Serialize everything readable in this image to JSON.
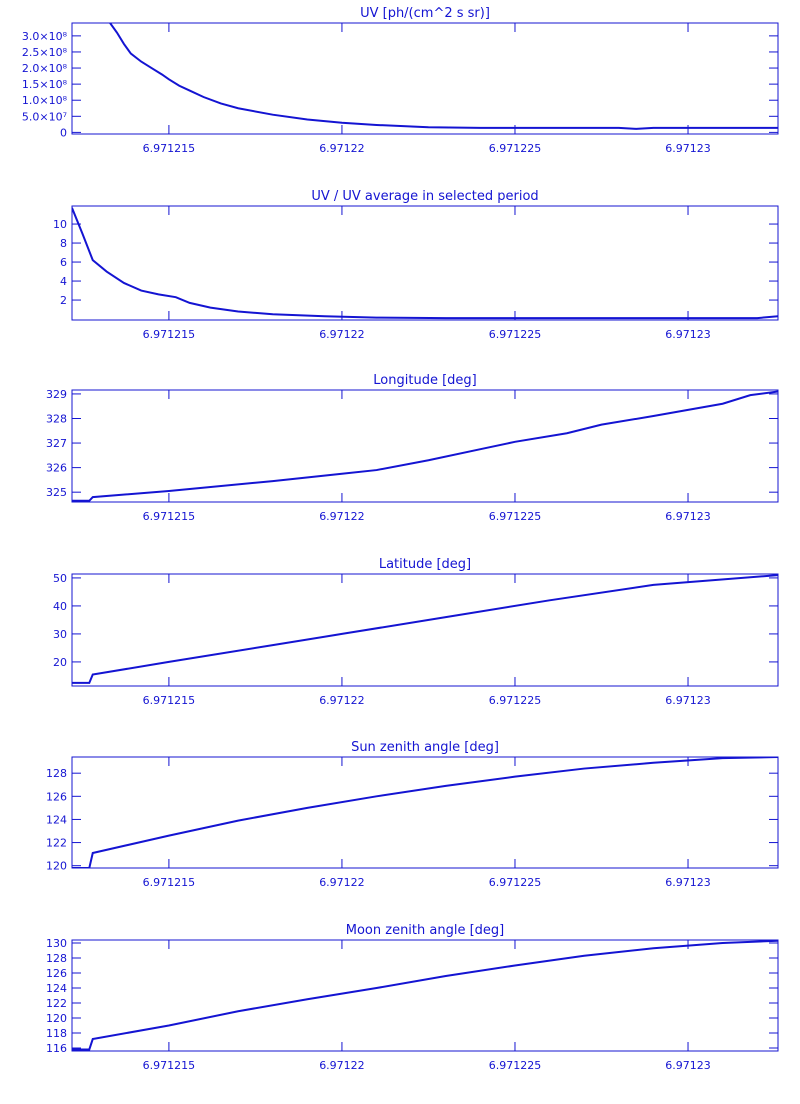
{
  "chart_data": [
    {
      "type": "line",
      "title": "UV [ph/(cm^2 s sr)]",
      "color": "#1414d2",
      "x": [
        6.9712133,
        6.9712135,
        6.9712137,
        6.9712139,
        6.9712142,
        6.9712145,
        6.9712148,
        6.971215,
        6.9712153,
        6.9712156,
        6.971216,
        6.9712165,
        6.971217,
        6.971218,
        6.971219,
        6.97122,
        6.971221,
        6.9712225,
        6.971224,
        6.971228,
        6.9712285,
        6.971229,
        6.9712326
      ],
      "values": [
        340000000,
        310000000,
        275000000,
        245000000,
        220000000,
        200000000,
        180000000,
        165000000,
        145000000,
        130000000,
        110000000,
        90000000,
        75000000,
        55000000,
        40000000,
        30000000,
        23000000,
        16000000,
        14000000,
        14000000,
        11000000,
        14000000,
        14000000
      ],
      "xlim": [
        6.9712122,
        6.9712326
      ],
      "xticks": [
        6.971215,
        6.97122,
        6.971225,
        6.97123
      ],
      "ylim": [
        -5000000,
        340000000
      ],
      "yticks": [
        0,
        {
          "value": 50000000,
          "label": "5.0×10⁷"
        },
        {
          "value": 100000000,
          "label": "1.0×10⁸"
        },
        {
          "value": 150000000,
          "label": "1.5×10⁸"
        },
        {
          "value": 200000000,
          "label": "2.0×10⁸"
        },
        {
          "value": 250000000,
          "label": "2.5×10⁸"
        },
        {
          "value": 300000000,
          "label": "3.0×10⁸"
        }
      ]
    },
    {
      "type": "line",
      "title": "UV / UV average in selected period",
      "color": "#1414d2",
      "x": [
        6.9712122,
        6.9712125,
        6.9712128,
        6.9712132,
        6.9712137,
        6.9712142,
        6.9712147,
        6.9712152,
        6.9712156,
        6.9712162,
        6.971217,
        6.971218,
        6.9712195,
        6.971221,
        6.971223,
        6.971232,
        6.9712326
      ],
      "values": [
        11.7,
        9,
        6.2,
        5,
        3.8,
        3,
        2.6,
        2.3,
        1.7,
        1.2,
        0.8,
        0.5,
        0.3,
        0.15,
        0.1,
        0.1,
        0.3
      ],
      "xlim": [
        6.9712122,
        6.9712326
      ],
      "xticks": [
        6.971215,
        6.97122,
        6.971225,
        6.97123
      ],
      "ylim": [
        -0.1,
        11.9
      ],
      "yticks": [
        2,
        4,
        6,
        8,
        10
      ]
    },
    {
      "type": "line",
      "title": "Longitude [deg]",
      "color": "#1414d2",
      "x": [
        6.9712122,
        6.9712127,
        6.9712128,
        6.971215,
        6.971218,
        6.97122,
        6.971221,
        6.9712225,
        6.971224,
        6.971225,
        6.9712265,
        6.9712275,
        6.971229,
        6.971231,
        6.9712318,
        6.9712326
      ],
      "values": [
        324.65,
        324.65,
        324.8,
        325.05,
        325.45,
        325.75,
        325.9,
        326.3,
        326.75,
        327.05,
        327.4,
        327.75,
        328.1,
        328.6,
        328.95,
        329.1
      ],
      "xlim": [
        6.9712122,
        6.9712326
      ],
      "xticks": [
        6.971215,
        6.97122,
        6.971225,
        6.97123
      ],
      "ylim": [
        324.6,
        329.16
      ],
      "yticks": [
        325,
        326,
        327,
        328,
        329
      ]
    },
    {
      "type": "line",
      "title": "Latitude [deg]",
      "color": "#1414d2",
      "x": [
        6.9712122,
        6.9712127,
        6.9712128,
        6.971215,
        6.971218,
        6.97122,
        6.971223,
        6.971226,
        6.971229,
        6.9712326
      ],
      "values": [
        12.5,
        12.5,
        15.5,
        20,
        26,
        30,
        36,
        42,
        47.5,
        51
      ],
      "xlim": [
        6.9712122,
        6.9712326
      ],
      "xticks": [
        6.971215,
        6.97122,
        6.971225,
        6.97123
      ],
      "ylim": [
        11.4,
        51.4
      ],
      "yticks": [
        20,
        30,
        40,
        50
      ]
    },
    {
      "type": "line",
      "title": "Sun zenith angle [deg]",
      "color": "#1414d2",
      "x": [
        6.9712122,
        6.9712127,
        6.9712128,
        6.971215,
        6.971217,
        6.971219,
        6.971221,
        6.971223,
        6.971225,
        6.971227,
        6.971229,
        6.971231,
        6.9712326
      ],
      "values": [
        119.8,
        119.8,
        121.1,
        122.6,
        123.9,
        125,
        126,
        126.9,
        127.7,
        128.4,
        128.9,
        129.3,
        129.4
      ],
      "xlim": [
        6.9712122,
        6.9712326
      ],
      "xticks": [
        6.971215,
        6.97122,
        6.971225,
        6.97123
      ],
      "ylim": [
        119.8,
        129.4
      ],
      "yticks": [
        120,
        122,
        124,
        126,
        128
      ]
    },
    {
      "type": "line",
      "title": "Moon zenith angle [deg]",
      "color": "#1414d2",
      "x": [
        6.9712122,
        6.9712127,
        6.9712128,
        6.971215,
        6.971217,
        6.971219,
        6.971221,
        6.971223,
        6.971225,
        6.971227,
        6.971229,
        6.971231,
        6.9712326
      ],
      "values": [
        115.8,
        115.8,
        117.2,
        119,
        120.9,
        122.5,
        124,
        125.6,
        127,
        128.3,
        129.3,
        130,
        130.3
      ],
      "xlim": [
        6.9712122,
        6.9712326
      ],
      "xticks": [
        6.971215,
        6.97122,
        6.971225,
        6.97123
      ],
      "ylim": [
        115.6,
        130.4
      ],
      "yticks": [
        116,
        118,
        120,
        122,
        124,
        126,
        128,
        130
      ]
    }
  ]
}
